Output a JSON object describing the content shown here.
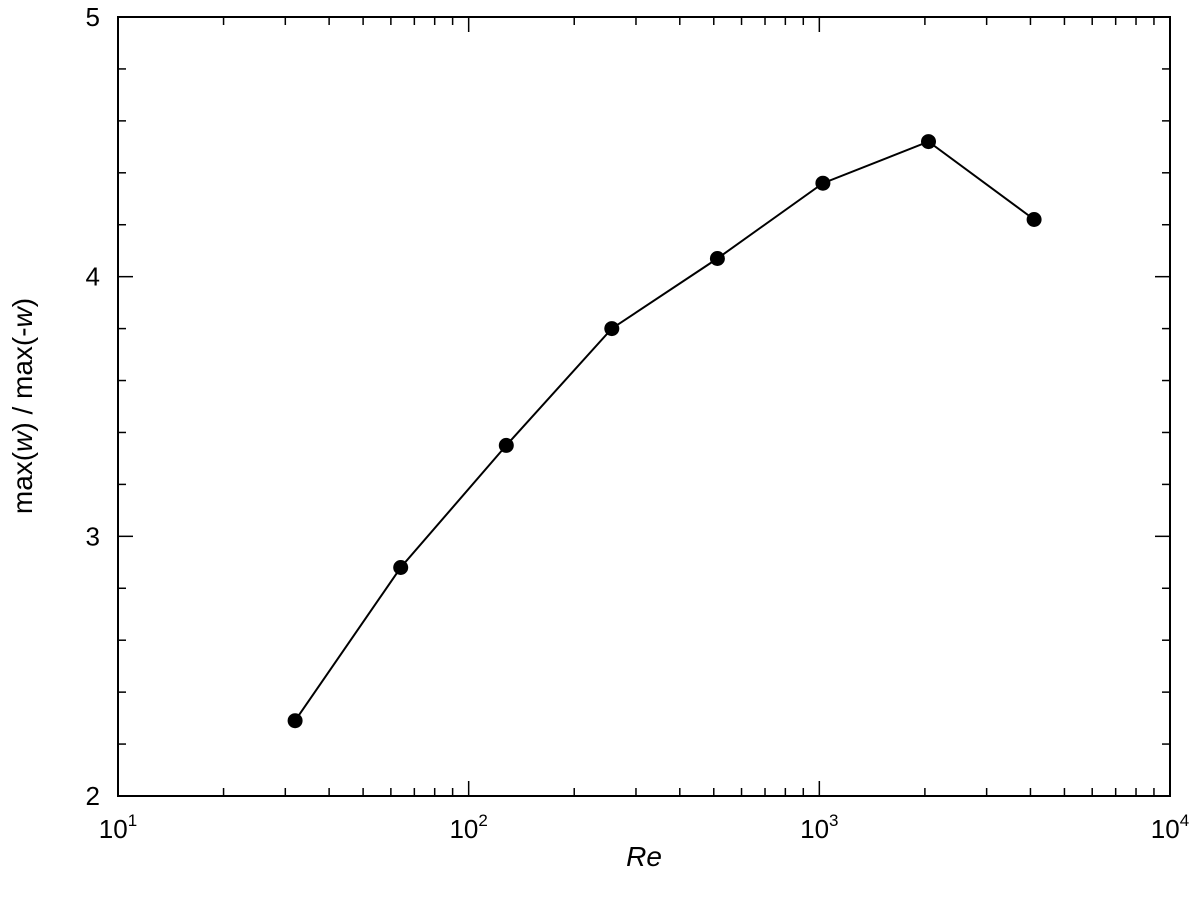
{
  "chart_data": {
    "type": "line",
    "xscale": "log",
    "x": [
      32,
      64,
      128,
      256,
      512,
      1024,
      2048,
      4096
    ],
    "series": [
      {
        "values": [
          2.29,
          2.88,
          3.35,
          3.8,
          4.07,
          4.36,
          4.52,
          4.22
        ]
      }
    ],
    "xlim": [
      10,
      10000
    ],
    "ylim": [
      2,
      5
    ],
    "xticks": [
      10,
      100,
      1000,
      10000
    ],
    "xtick_labels": [
      {
        "base": "10",
        "exp": "1"
      },
      {
        "base": "10",
        "exp": "2"
      },
      {
        "base": "10",
        "exp": "3"
      },
      {
        "base": "10",
        "exp": "4"
      }
    ],
    "yticks": [
      2,
      3,
      4,
      5
    ],
    "ytick_labels": [
      "2",
      "3",
      "4",
      "5"
    ],
    "ylabel_parts": [
      "max(",
      "w",
      ") / max(-",
      "w",
      ")"
    ],
    "xlabel": "Re",
    "title": "",
    "grid": false,
    "legend": "none",
    "color": "#000000"
  }
}
